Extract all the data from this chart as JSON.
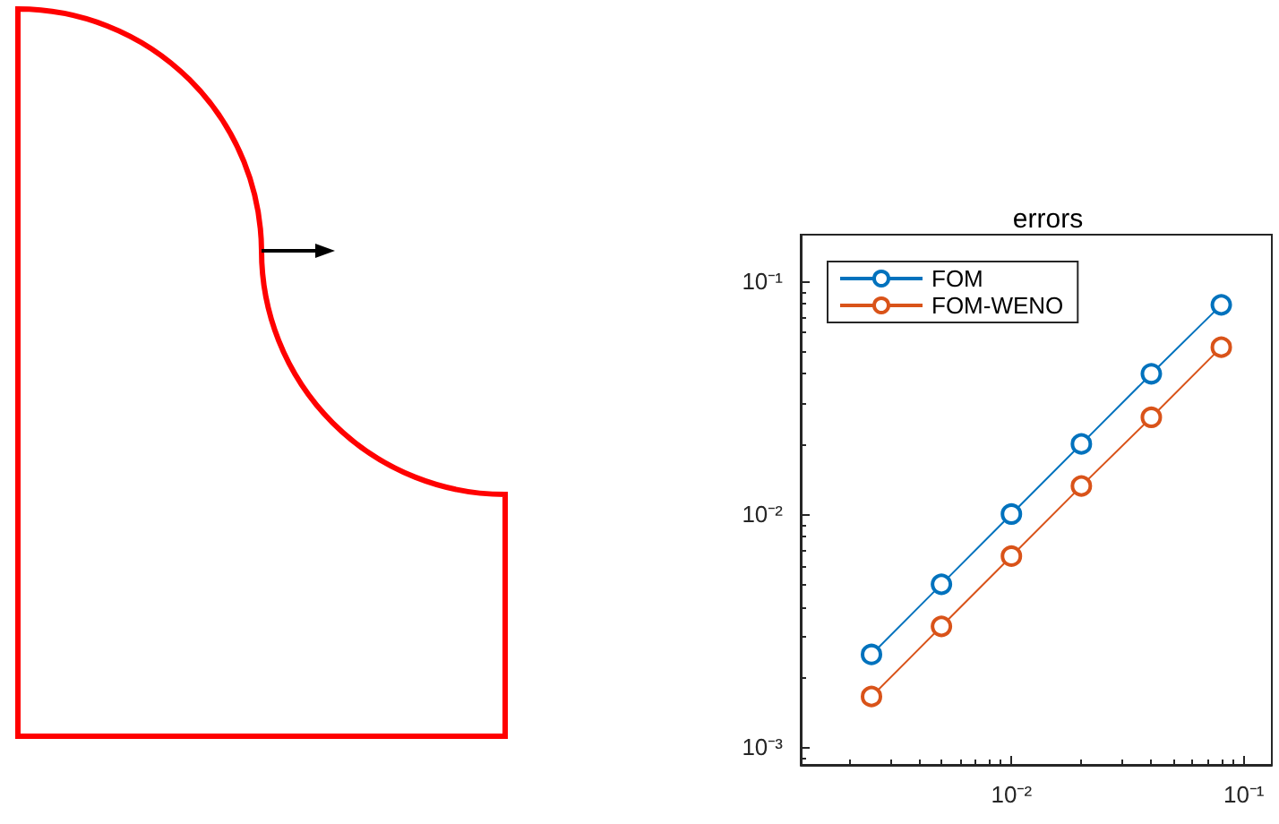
{
  "chart_data": {
    "type": "line",
    "title": "errors",
    "x": [
      0.0025,
      0.005,
      0.01,
      0.02,
      0.04,
      0.08
    ],
    "series": [
      {
        "name": "FOM",
        "color": "#0072bd",
        "values": [
          0.0025,
          0.005,
          0.01,
          0.02,
          0.04,
          0.079
        ]
      },
      {
        "name": "FOM-WENO",
        "color": "#d95319",
        "values": [
          0.00165,
          0.0033,
          0.0066,
          0.0132,
          0.026,
          0.052
        ]
      }
    ],
    "log": "xy",
    "xlim": [
      0.00124,
      0.132
    ],
    "ylim": [
      0.00084,
      0.158
    ],
    "xticks": [
      {
        "value": 0.01,
        "label": "10⁻²"
      },
      {
        "value": 0.1,
        "label": "10⁻¹"
      }
    ],
    "yticks": [
      {
        "value": 0.001,
        "label": "10⁻³"
      },
      {
        "value": 0.01,
        "label": "10⁻²"
      },
      {
        "value": 0.1,
        "label": "10⁻¹"
      }
    ],
    "grid": false,
    "legend": "top left",
    "marker": "circle",
    "line_style": "solid"
  }
}
